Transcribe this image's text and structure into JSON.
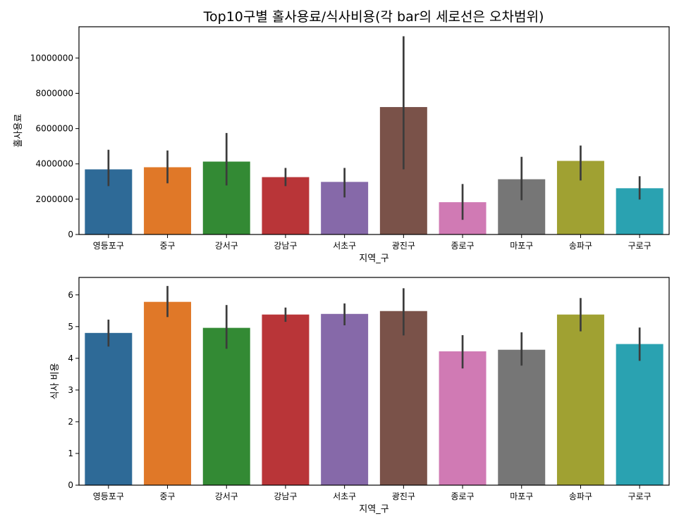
{
  "title": "Top10구별 홀사용료/식사비용(각 bar의 세로선은 오차범위)",
  "colors": [
    "#2e6a97",
    "#e07828",
    "#338a34",
    "#b93538",
    "#8669a9",
    "#7a5249",
    "#d07ab4",
    "#767676",
    "#a0a132",
    "#2aa2b1"
  ],
  "errorbar_color": "#3c3c3c",
  "chart_data": [
    {
      "type": "bar",
      "xlabel": "지역_구",
      "ylabel": "홀사용료",
      "ylim": [
        0,
        11770000
      ],
      "yticks": [
        0,
        2000000,
        4000000,
        6000000,
        8000000,
        10000000
      ],
      "ytick_labels": [
        "0",
        "2000000",
        "4000000",
        "6000000",
        "8000000",
        "10000000"
      ],
      "categories": [
        "영등포구",
        "중구",
        "강서구",
        "강남구",
        "서초구",
        "광진구",
        "종로구",
        "마포구",
        "송파구",
        "구로구"
      ],
      "values": [
        3690000,
        3810000,
        4130000,
        3250000,
        2980000,
        7220000,
        1830000,
        3130000,
        4170000,
        2620000
      ],
      "err_low": [
        2740000,
        2900000,
        2780000,
        2740000,
        2100000,
        3690000,
        830000,
        1940000,
        3060000,
        1980000
      ],
      "err_high": [
        4800000,
        4760000,
        5750000,
        3770000,
        3770000,
        11230000,
        2860000,
        4400000,
        5040000,
        3300000
      ]
    },
    {
      "type": "bar",
      "xlabel": "지역_구",
      "ylabel": "식사 비용",
      "ylim": [
        0,
        6.55
      ],
      "yticks": [
        0,
        1,
        2,
        3,
        4,
        5,
        6
      ],
      "ytick_labels": [
        "0",
        "1",
        "2",
        "3",
        "4",
        "5",
        "6"
      ],
      "categories": [
        "영등포구",
        "중구",
        "강서구",
        "강남구",
        "서초구",
        "광진구",
        "종로구",
        "마포구",
        "송파구",
        "구로구"
      ],
      "values": [
        4.8,
        5.78,
        4.96,
        5.38,
        5.4,
        5.49,
        4.22,
        4.27,
        5.38,
        4.45
      ],
      "err_low": [
        4.37,
        5.3,
        4.3,
        5.15,
        5.04,
        4.72,
        3.68,
        3.77,
        4.85,
        3.92
      ],
      "err_high": [
        5.22,
        6.28,
        5.68,
        5.6,
        5.73,
        6.21,
        4.73,
        4.82,
        5.9,
        4.97
      ]
    }
  ]
}
